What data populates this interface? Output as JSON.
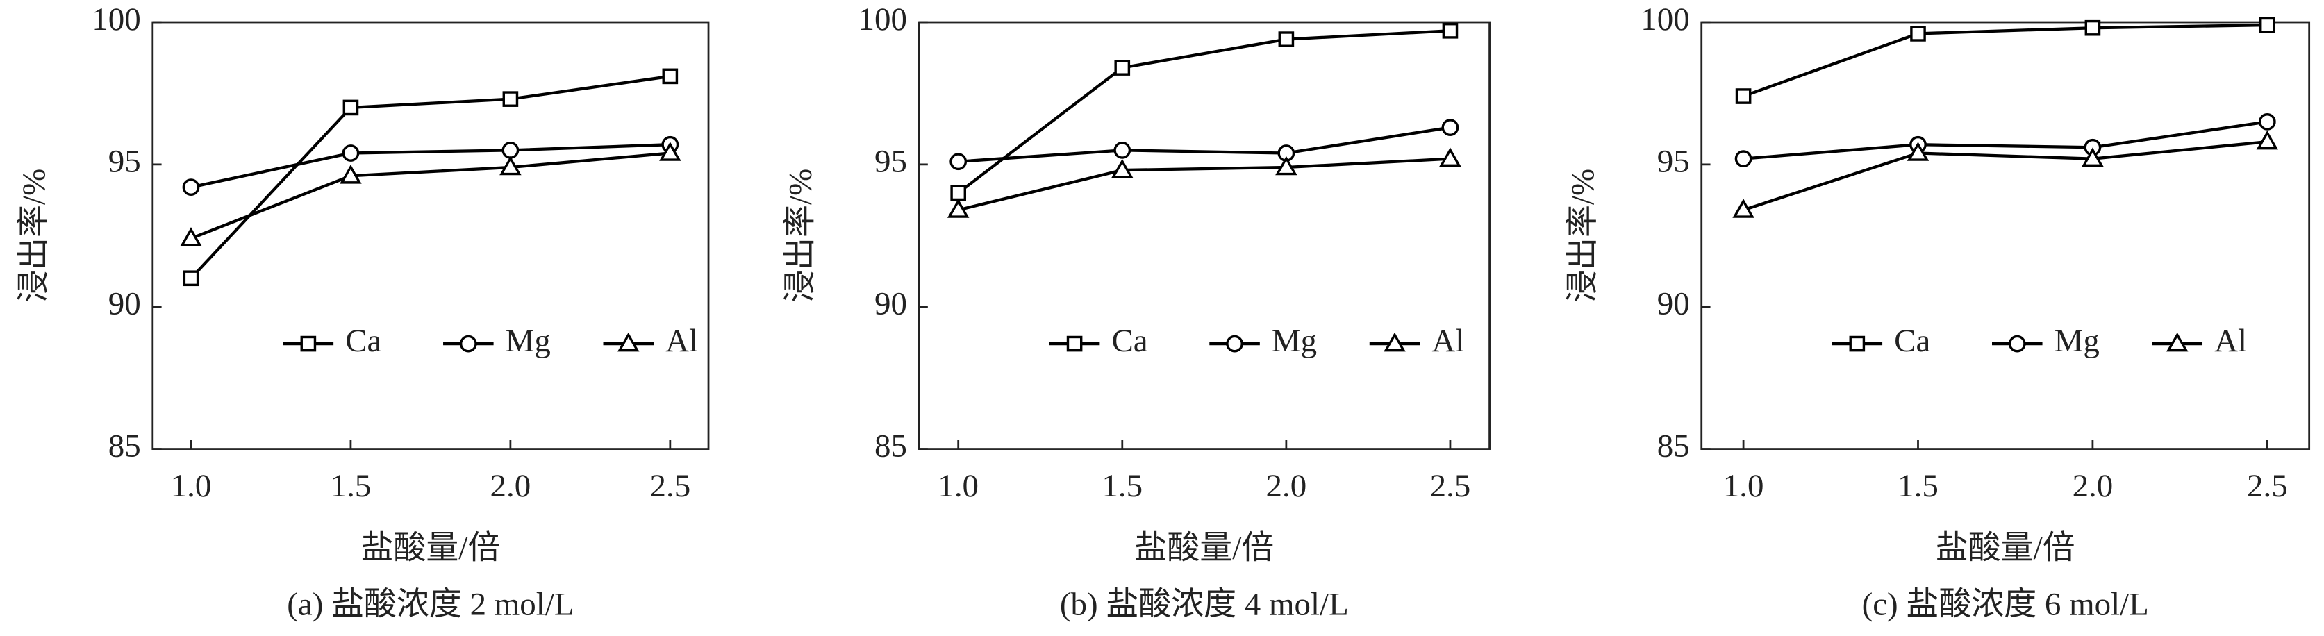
{
  "chart_data": [
    {
      "type": "line",
      "caption": "(a) 盐酸浓度 2 mol/L",
      "xlabel": "盐酸量/倍",
      "ylabel": "浸出率/%",
      "x": [
        1,
        1.5,
        2,
        2.5
      ],
      "xlim": [
        0.88,
        2.62
      ],
      "xticks": [
        {
          "value": 1,
          "label": "1.0"
        },
        {
          "value": 1.5,
          "label": "1.5"
        },
        {
          "value": 2,
          "label": "2.0"
        },
        {
          "value": 2.5,
          "label": "2.5"
        }
      ],
      "ylim": [
        85,
        100
      ],
      "yticks": [
        85,
        90,
        95,
        100
      ],
      "grid": false,
      "series": [
        {
          "name": "Ca",
          "color": "#000000",
          "marker": "square",
          "values": [
            91.0,
            97.0,
            97.3,
            98.1
          ]
        },
        {
          "name": "Mg",
          "color": "#000000",
          "marker": "circle",
          "values": [
            94.2,
            95.4,
            95.5,
            95.7
          ]
        },
        {
          "name": "Al",
          "color": "#000000",
          "marker": "triangle",
          "values": [
            92.4,
            94.6,
            94.9,
            95.4
          ]
        }
      ]
    },
    {
      "type": "line",
      "caption": "(b) 盐酸浓度 4 mol/L",
      "xlabel": "盐酸量/倍",
      "ylabel": "浸出率/%",
      "x": [
        1,
        1.5,
        2,
        2.5
      ],
      "xlim": [
        0.88,
        2.62
      ],
      "xticks": [
        {
          "value": 1,
          "label": "1.0"
        },
        {
          "value": 1.5,
          "label": "1.5"
        },
        {
          "value": 2,
          "label": "2.0"
        },
        {
          "value": 2.5,
          "label": "2.5"
        }
      ],
      "ylim": [
        85,
        100
      ],
      "yticks": [
        85,
        90,
        95,
        100
      ],
      "grid": false,
      "series": [
        {
          "name": "Ca",
          "color": "#000000",
          "marker": "square",
          "values": [
            94.0,
            98.4,
            99.4,
            99.7
          ]
        },
        {
          "name": "Mg",
          "color": "#000000",
          "marker": "circle",
          "values": [
            95.1,
            95.5,
            95.4,
            96.3
          ]
        },
        {
          "name": "Al",
          "color": "#000000",
          "marker": "triangle",
          "values": [
            93.4,
            94.8,
            94.9,
            95.2
          ]
        }
      ]
    },
    {
      "type": "line",
      "caption": "(c) 盐酸浓度 6 mol/L",
      "xlabel": "盐酸量/倍",
      "ylabel": "浸出率/%",
      "x": [
        1,
        1.5,
        2,
        2.5
      ],
      "xlim": [
        0.88,
        2.62
      ],
      "xticks": [
        {
          "value": 1,
          "label": "1.0"
        },
        {
          "value": 1.5,
          "label": "1.5"
        },
        {
          "value": 2,
          "label": "2.0"
        },
        {
          "value": 2.5,
          "label": "2.5"
        }
      ],
      "ylim": [
        85,
        100
      ],
      "yticks": [
        85,
        90,
        95,
        100
      ],
      "grid": false,
      "series": [
        {
          "name": "Ca",
          "color": "#000000",
          "marker": "square",
          "values": [
            97.4,
            99.6,
            99.8,
            99.9
          ]
        },
        {
          "name": "Mg",
          "color": "#000000",
          "marker": "circle",
          "values": [
            95.2,
            95.7,
            95.6,
            96.5
          ]
        },
        {
          "name": "Al",
          "color": "#000000",
          "marker": "triangle",
          "values": [
            93.4,
            95.4,
            95.2,
            95.8
          ]
        }
      ]
    }
  ]
}
